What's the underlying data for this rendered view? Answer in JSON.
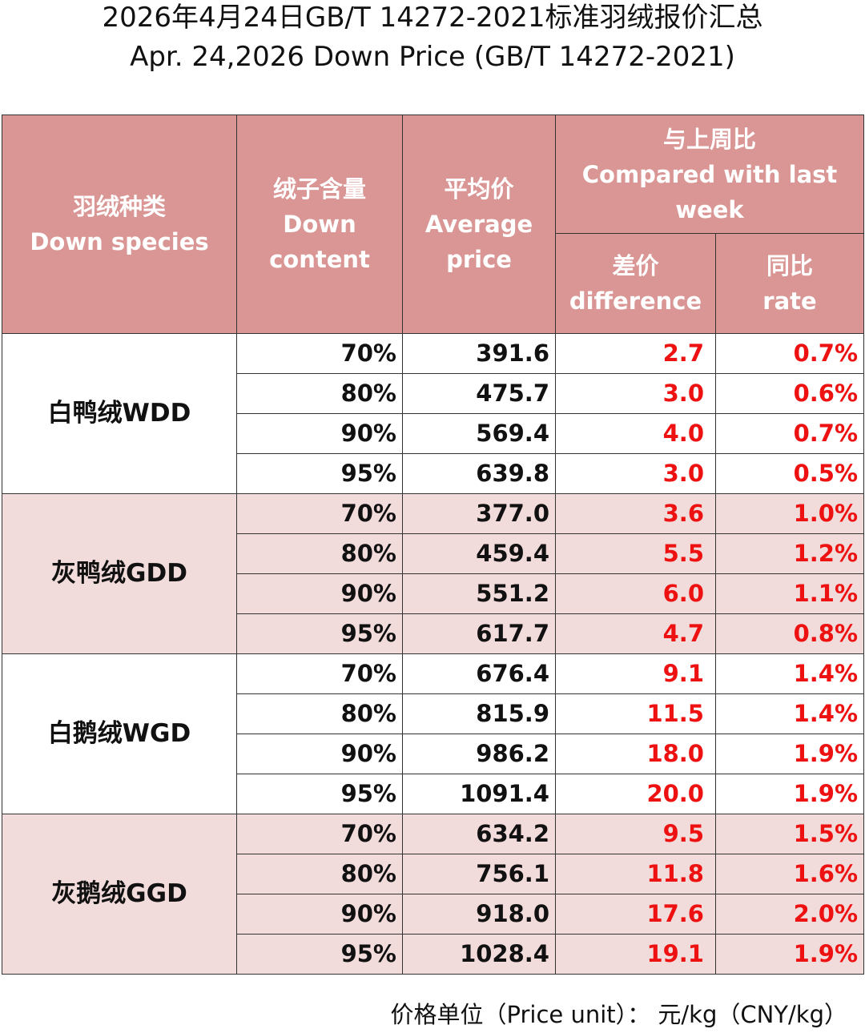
{
  "title": {
    "cn": "2026年4月24日GB/T 14272-2021标准羽绒报价汇总",
    "en": "Apr. 24,2026 Down Price (GB/T 14272-2021)"
  },
  "headers": {
    "species": {
      "cn": "羽绒种类",
      "en": "Down species"
    },
    "content": {
      "cn": "绒子含量",
      "en1": "Down",
      "en2": "content"
    },
    "avg": {
      "cn": "平均价",
      "en1": "Average",
      "en2": "price"
    },
    "compare": {
      "cn": "与上周比",
      "en1": "Compared with last",
      "en2": "week"
    },
    "diff": {
      "cn": "差价",
      "en": "difference"
    },
    "rate": {
      "cn": "同比",
      "en": "rate"
    }
  },
  "groups": [
    {
      "species": "白鸭绒WDD",
      "rows": [
        {
          "content": "70%",
          "price": "391.6",
          "diff": "2.7",
          "rate": "0.7%"
        },
        {
          "content": "80%",
          "price": "475.7",
          "diff": "3.0",
          "rate": "0.6%"
        },
        {
          "content": "90%",
          "price": "569.4",
          "diff": "4.0",
          "rate": "0.7%"
        },
        {
          "content": "95%",
          "price": "639.8",
          "diff": "3.0",
          "rate": "0.5%"
        }
      ]
    },
    {
      "species": "灰鸭绒GDD",
      "rows": [
        {
          "content": "70%",
          "price": "377.0",
          "diff": "3.6",
          "rate": "1.0%"
        },
        {
          "content": "80%",
          "price": "459.4",
          "diff": "5.5",
          "rate": "1.2%"
        },
        {
          "content": "90%",
          "price": "551.2",
          "diff": "6.0",
          "rate": "1.1%"
        },
        {
          "content": "95%",
          "price": "617.7",
          "diff": "4.7",
          "rate": "0.8%"
        }
      ]
    },
    {
      "species": "白鹅绒WGD",
      "rows": [
        {
          "content": "70%",
          "price": "676.4",
          "diff": "9.1",
          "rate": "1.4%"
        },
        {
          "content": "80%",
          "price": "815.9",
          "diff": "11.5",
          "rate": "1.4%"
        },
        {
          "content": "90%",
          "price": "986.2",
          "diff": "18.0",
          "rate": "1.9%"
        },
        {
          "content": "95%",
          "price": "1091.4",
          "diff": "20.0",
          "rate": "1.9%"
        }
      ]
    },
    {
      "species": "灰鹅绒GGD",
      "rows": [
        {
          "content": "70%",
          "price": "634.2",
          "diff": "9.5",
          "rate": "1.5%"
        },
        {
          "content": "80%",
          "price": "756.1",
          "diff": "11.8",
          "rate": "1.6%"
        },
        {
          "content": "90%",
          "price": "918.0",
          "diff": "17.6",
          "rate": "2.0%"
        },
        {
          "content": "95%",
          "price": "1028.4",
          "diff": "19.1",
          "rate": "1.9%"
        }
      ]
    }
  ],
  "footer": {
    "price_unit": "价格单位（Price unit）： 元/kg（CNY/kg）"
  },
  "colors": {
    "header_bg": "#d99694",
    "alt_row_bg": "#f2dcdb",
    "change_text": "#ee1111"
  }
}
